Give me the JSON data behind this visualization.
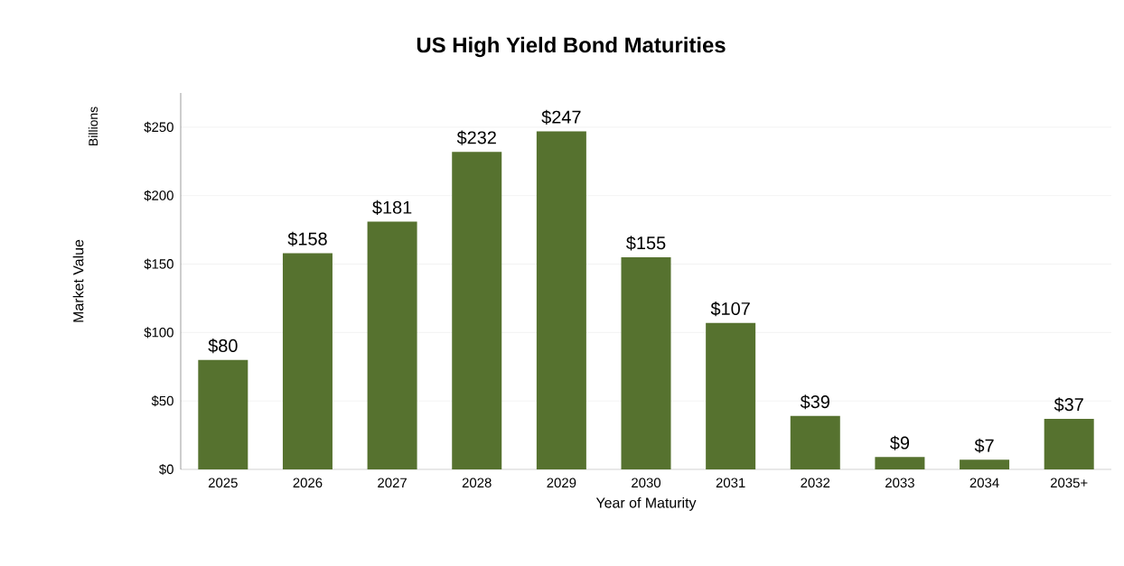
{
  "chart_data": {
    "type": "bar",
    "title": "US High Yield Bond Maturities",
    "xlabel": "Year of Maturity",
    "ylabel": "Market Value",
    "annotations": [
      "Billions"
    ],
    "categories": [
      "2025",
      "2026",
      "2027",
      "2028",
      "2029",
      "2030",
      "2031",
      "2032",
      "2033",
      "2034",
      "2035+"
    ],
    "values": [
      80,
      158,
      181,
      232,
      247,
      155,
      107,
      39,
      9,
      7,
      37
    ],
    "value_labels": [
      "$80",
      "$158",
      "$181",
      "$232",
      "$247",
      "$155",
      "$107",
      "$39",
      "$9",
      "$7",
      "$37"
    ],
    "color": "#56722f",
    "ylim": [
      0,
      275
    ],
    "yticks": [
      {
        "value": 0,
        "label": "$0"
      },
      {
        "value": 50,
        "label": "$50"
      },
      {
        "value": 100,
        "label": "$100"
      },
      {
        "value": 150,
        "label": "$150"
      },
      {
        "value": 200,
        "label": "$200"
      },
      {
        "value": 250,
        "label": "$250"
      }
    ],
    "grid": "y"
  }
}
